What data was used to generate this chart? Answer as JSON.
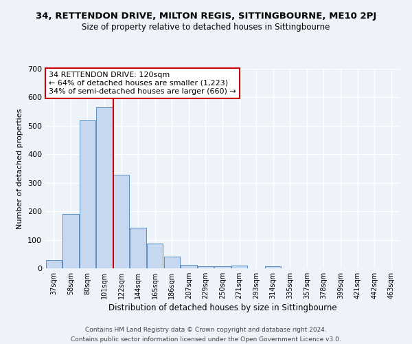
{
  "title_line1": "34, RETTENDON DRIVE, MILTON REGIS, SITTINGBOURNE, ME10 2PJ",
  "title_line2": "Size of property relative to detached houses in Sittingbourne",
  "xlabel": "Distribution of detached houses by size in Sittingbourne",
  "ylabel": "Number of detached properties",
  "footer_line1": "Contains HM Land Registry data © Crown copyright and database right 2024.",
  "footer_line2": "Contains public sector information licensed under the Open Government Licence v3.0.",
  "annotation_line1": "34 RETTENDON DRIVE: 120sqm",
  "annotation_line2": "← 64% of detached houses are smaller (1,223)",
  "annotation_line3": "34% of semi-detached houses are larger (660) →",
  "categories": [
    "37sqm",
    "58sqm",
    "80sqm",
    "101sqm",
    "122sqm",
    "144sqm",
    "165sqm",
    "186sqm",
    "207sqm",
    "229sqm",
    "250sqm",
    "271sqm",
    "293sqm",
    "314sqm",
    "335sqm",
    "357sqm",
    "378sqm",
    "399sqm",
    "421sqm",
    "442sqm",
    "463sqm"
  ],
  "values": [
    30,
    191,
    519,
    565,
    329,
    143,
    87,
    40,
    12,
    8,
    8,
    10,
    0,
    8,
    0,
    0,
    0,
    0,
    0,
    0,
    0
  ],
  "bar_color": "#c5d8f0",
  "bar_edge_color": "#5a8fc2",
  "vline_color": "#cc0000",
  "background_color": "#eef2f9",
  "ylim": [
    0,
    700
  ],
  "yticks": [
    0,
    100,
    200,
    300,
    400,
    500,
    600,
    700
  ],
  "grid_color": "#ffffff",
  "annotation_box_color": "#ffffff",
  "annotation_box_edge": "#cc0000",
  "title1_fontsize": 9.5,
  "title2_fontsize": 8.5
}
